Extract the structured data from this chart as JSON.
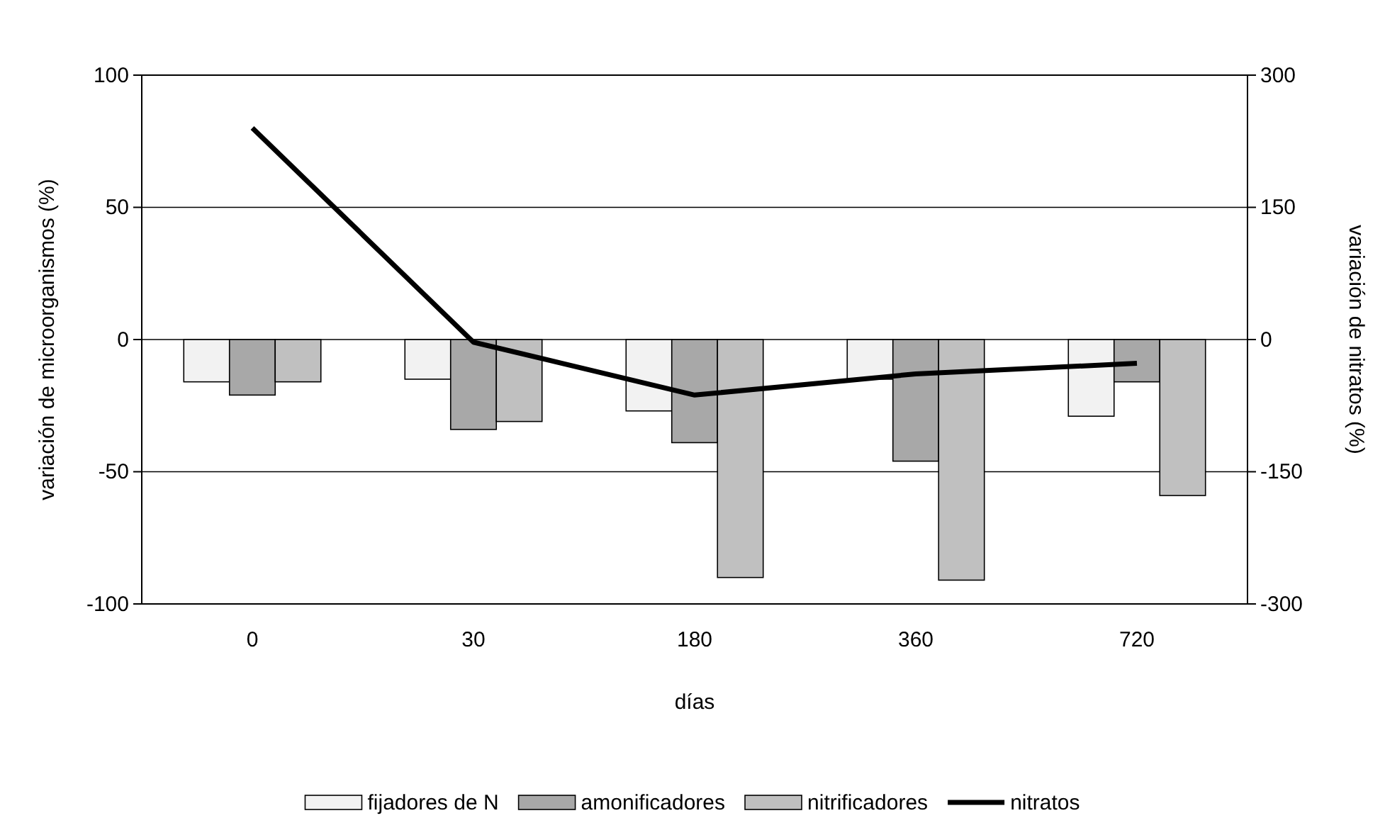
{
  "chart_data": {
    "type": "bar",
    "xlabel": "días",
    "ylabel": "variación de microorganismos (%)",
    "y2label": "variación de nitratos (%)",
    "categories": [
      "0",
      "30",
      "180",
      "360",
      "720"
    ],
    "series": [
      {
        "name": "fijadores de N",
        "color": "#f2f2f2",
        "values": [
          -16,
          -15,
          -27,
          -15,
          -29
        ]
      },
      {
        "name": "amonificadores",
        "color": "#a8a8a8",
        "values": [
          -21,
          -34,
          -39,
          -46,
          -16
        ]
      },
      {
        "name": "nitrificadores",
        "color": "#c0c0c0",
        "values": [
          -16,
          -31,
          -90,
          -91,
          -59
        ]
      },
      {
        "name": "nitratos",
        "type": "line",
        "axis": "y2",
        "color": "#000000",
        "values": [
          240,
          -3,
          -63,
          -39,
          -27
        ]
      }
    ],
    "ylim": [
      -100,
      100
    ],
    "yticks": [
      -100,
      -50,
      0,
      50,
      100
    ],
    "y2lim": [
      -300,
      300
    ],
    "y2ticks": [
      -300,
      -150,
      0,
      150,
      300
    ],
    "grid": "y",
    "legend": "bottom",
    "marker": "none",
    "line_style": "solid"
  }
}
